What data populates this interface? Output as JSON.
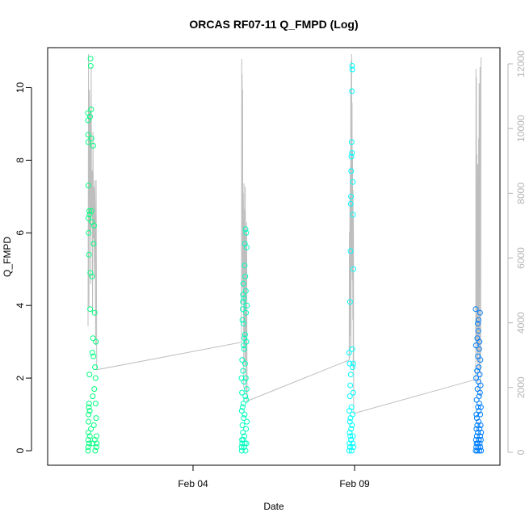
{
  "chart_data": {
    "type": "scatter",
    "title": "ORCAS RF07-11 Q_FMPD (Log)",
    "xlabel": "Date",
    "ylabel": "Q_FMPD",
    "x_ticks": [
      {
        "date": "2016-02-04",
        "label": "Feb 04"
      },
      {
        "date": "2016-02-09",
        "label": "Feb 09"
      }
    ],
    "xlim": [
      "2016-01-30T12:00",
      "2016-02-13T12:00"
    ],
    "ylim": [
      -0.4,
      11.1
    ],
    "y_ticks": [
      0,
      2,
      4,
      6,
      8,
      10
    ],
    "y2lim": [
      -400,
      12500
    ],
    "y2_ticks": [
      0,
      2000,
      4000,
      6000,
      8000,
      10000,
      12000
    ],
    "y2_color": "#b4b4b4",
    "grid": false,
    "line_color": "#bebebe",
    "series": [
      {
        "color": "#00ff7f",
        "x": [
          "2016-01-31T18:00",
          "2016-01-31T18:00",
          "2016-01-31T18:00",
          "2016-01-31T18:05",
          "2016-01-31T18:05",
          "2016-01-31T18:10",
          "2016-01-31T18:10",
          "2016-01-31T18:15",
          "2016-01-31T18:15",
          "2016-01-31T18:20",
          "2016-01-31T18:20",
          "2016-01-31T18:25",
          "2016-01-31T18:30",
          "2016-01-31T18:35",
          "2016-01-31T18:40",
          "2016-01-31T18:45",
          "2016-01-31T18:50",
          "2016-01-31T18:55",
          "2016-01-31T19:00",
          "2016-01-31T19:10",
          "2016-01-31T19:15",
          "2016-01-31T19:20",
          "2016-01-31T19:30",
          "2016-01-31T19:35",
          "2016-01-31T19:40",
          "2016-01-31T19:50",
          "2016-01-31T20:00",
          "2016-01-31T20:10",
          "2016-01-31T20:20",
          "2016-01-31T20:30",
          "2016-01-31T20:40",
          "2016-01-31T20:50",
          "2016-01-31T21:00",
          "2016-01-31T21:10",
          "2016-01-31T21:20",
          "2016-01-31T21:30",
          "2016-01-31T21:40",
          "2016-01-31T21:50",
          "2016-01-31T22:00",
          "2016-01-31T22:10",
          "2016-01-31T22:20",
          "2016-01-31T22:30",
          "2016-01-31T22:40",
          "2016-01-31T22:50",
          "2016-01-31T23:00",
          "2016-01-31T23:10",
          "2016-01-31T23:20",
          "2016-01-31T23:30",
          "2016-01-31T23:40",
          "2016-01-31T23:50",
          "2016-02-01T00:00",
          "2016-02-01T00:10",
          "2016-02-01T00:20",
          "2016-02-01T00:30"
        ],
        "y": [
          0.0,
          9.3,
          9.1,
          0.1,
          8.7,
          0.3,
          8.5,
          0.5,
          7.3,
          0.8,
          6.4,
          1.0,
          6.0,
          1.2,
          5.4,
          1.3,
          0.2,
          6.6,
          2.1,
          6.5,
          1.1,
          0.4,
          9.2,
          3.9,
          4.9,
          10.8,
          10.6,
          0.6,
          9.4,
          8.6,
          6.6,
          6.3,
          4.8,
          2.7,
          0.2,
          1.5,
          3.1,
          8.4,
          2.6,
          5.7,
          0.7,
          6.2,
          1.7,
          3.8,
          0.3,
          2.3,
          0.0,
          2.0,
          1.3,
          3.0,
          0.9,
          0.1,
          0.4,
          0.2
        ]
      },
      {
        "color": "#00ffbf",
        "x": [
          "2016-02-05T12:00",
          "2016-02-05T12:00",
          "2016-02-05T12:10",
          "2016-02-05T12:10",
          "2016-02-05T12:20",
          "2016-02-05T12:20",
          "2016-02-05T12:30",
          "2016-02-05T12:30",
          "2016-02-05T12:40",
          "2016-02-05T12:40",
          "2016-02-05T12:50",
          "2016-02-05T12:50",
          "2016-02-05T13:00",
          "2016-02-05T13:00",
          "2016-02-05T13:10",
          "2016-02-05T13:10",
          "2016-02-05T13:20",
          "2016-02-05T13:20",
          "2016-02-05T13:30",
          "2016-02-05T13:30",
          "2016-02-05T13:40",
          "2016-02-05T13:40",
          "2016-02-05T13:50",
          "2016-02-05T13:50",
          "2016-02-05T14:00",
          "2016-02-05T14:00",
          "2016-02-05T14:10",
          "2016-02-05T14:10",
          "2016-02-05T14:20",
          "2016-02-05T14:20",
          "2016-02-05T14:30",
          "2016-02-05T14:30",
          "2016-02-05T14:40",
          "2016-02-05T14:40",
          "2016-02-05T14:50",
          "2016-02-05T14:50",
          "2016-02-05T15:00",
          "2016-02-05T15:00",
          "2016-02-05T15:10",
          "2016-02-05T15:10",
          "2016-02-05T15:20",
          "2016-02-05T15:20",
          "2016-02-05T15:30",
          "2016-02-05T15:30",
          "2016-02-05T15:40",
          "2016-02-05T15:40",
          "2016-02-05T15:50",
          "2016-02-05T15:50",
          "2016-02-05T16:00",
          "2016-02-05T16:00"
        ],
        "y": [
          0.1,
          2.0,
          0.0,
          1.1,
          0.3,
          1.6,
          0.2,
          2.5,
          3.6,
          0.7,
          1.2,
          3.9,
          4.1,
          0.5,
          2.2,
          4.3,
          4.6,
          0.3,
          1.3,
          3.5,
          2.9,
          0.9,
          1.9,
          4.2,
          0.1,
          2.8,
          0.4,
          3.1,
          5.1,
          1.0,
          5.7,
          0.2,
          2.4,
          3.2,
          1.5,
          4.8,
          0.0,
          6.1,
          2.0,
          4.4,
          0.6,
          3.8,
          1.4,
          6.0,
          0.2,
          3.0,
          5.6,
          1.7,
          0.8,
          4.0
        ]
      },
      {
        "color": "#00ffff",
        "x": [
          "2016-02-08T20:00",
          "2016-02-08T20:00",
          "2016-02-08T20:10",
          "2016-02-08T20:10",
          "2016-02-08T20:20",
          "2016-02-08T20:20",
          "2016-02-08T20:30",
          "2016-02-08T20:30",
          "2016-02-08T20:40",
          "2016-02-08T20:40",
          "2016-02-08T20:50",
          "2016-02-08T20:50",
          "2016-02-08T21:00",
          "2016-02-08T21:00",
          "2016-02-08T21:10",
          "2016-02-08T21:10",
          "2016-02-08T21:20",
          "2016-02-08T21:20",
          "2016-02-08T21:30",
          "2016-02-08T21:30",
          "2016-02-08T21:40",
          "2016-02-08T21:40",
          "2016-02-08T21:50",
          "2016-02-08T21:50",
          "2016-02-08T22:00",
          "2016-02-08T22:00",
          "2016-02-08T22:10",
          "2016-02-08T22:10",
          "2016-02-08T22:20",
          "2016-02-08T22:20",
          "2016-02-08T22:30",
          "2016-02-08T22:30",
          "2016-02-08T22:40",
          "2016-02-08T22:40",
          "2016-02-08T22:50",
          "2016-02-08T22:50",
          "2016-02-08T23:00",
          "2016-02-08T23:00",
          "2016-02-08T23:10",
          "2016-02-08T23:10"
        ],
        "y": [
          0.0,
          2.7,
          0.2,
          1.1,
          0.5,
          2.4,
          0.8,
          1.5,
          0.1,
          4.1,
          1.8,
          0.4,
          5.5,
          0.9,
          2.1,
          6.8,
          0.3,
          7.0,
          7.7,
          0.6,
          8.1,
          1.2,
          8.5,
          0.0,
          8.2,
          9.9,
          10.6,
          0.7,
          10.5,
          2.8,
          2.3,
          1.0,
          0.2,
          7.4,
          6.5,
          0.4,
          1.6,
          2.4,
          0.1,
          5.0
        ]
      },
      {
        "color": "#007fff",
        "x": [
          "2016-02-12T18:00",
          "2016-02-12T18:00",
          "2016-02-12T18:10",
          "2016-02-12T18:10",
          "2016-02-12T18:20",
          "2016-02-12T18:20",
          "2016-02-12T18:30",
          "2016-02-12T18:30",
          "2016-02-12T18:40",
          "2016-02-12T18:40",
          "2016-02-12T18:50",
          "2016-02-12T18:50",
          "2016-02-12T19:00",
          "2016-02-12T19:00",
          "2016-02-12T19:10",
          "2016-02-12T19:10",
          "2016-02-12T19:20",
          "2016-02-12T19:20",
          "2016-02-12T19:30",
          "2016-02-12T19:30",
          "2016-02-12T19:40",
          "2016-02-12T19:40",
          "2016-02-12T19:50",
          "2016-02-12T19:50",
          "2016-02-12T20:00",
          "2016-02-12T20:00",
          "2016-02-12T20:10",
          "2016-02-12T20:10",
          "2016-02-12T20:20",
          "2016-02-12T20:20",
          "2016-02-12T20:30",
          "2016-02-12T20:30",
          "2016-02-12T20:40",
          "2016-02-12T20:40",
          "2016-02-12T20:50",
          "2016-02-12T20:50",
          "2016-02-12T21:00",
          "2016-02-12T21:00",
          "2016-02-12T21:10",
          "2016-02-12T21:10",
          "2016-02-12T21:20",
          "2016-02-12T21:20",
          "2016-02-12T21:30",
          "2016-02-12T21:30",
          "2016-02-12T21:40",
          "2016-02-12T21:40",
          "2016-02-12T21:50",
          "2016-02-12T21:50",
          "2016-02-12T22:00",
          "2016-02-12T22:00"
        ],
        "y": [
          0.0,
          3.9,
          0.3,
          2.9,
          0.1,
          2.0,
          0.6,
          1.0,
          0.2,
          1.4,
          0.9,
          0.4,
          2.2,
          0.0,
          3.1,
          0.7,
          1.7,
          0.2,
          3.5,
          0.5,
          2.6,
          1.2,
          3.3,
          0.1,
          1.9,
          3.6,
          0.8,
          2.3,
          1.1,
          0.3,
          1.5,
          2.8,
          0.0,
          1.3,
          3.0,
          0.6,
          2.1,
          0.2,
          1.6,
          3.8,
          0.4,
          1.0,
          2.5,
          0.1,
          0.7,
          1.8,
          0.3,
          1.2,
          0.5,
          0.0
        ]
      }
    ],
    "y2_series": {
      "x": [
        "2016-01-31T18:00",
        "2016-01-31T18:20",
        "2016-01-31T18:40",
        "2016-01-31T19:00",
        "2016-01-31T19:20",
        "2016-01-31T19:40",
        "2016-01-31T20:00",
        "2016-01-31T20:20",
        "2016-01-31T20:40",
        "2016-01-31T21:00",
        "2016-01-31T21:20",
        "2016-01-31T21:40",
        "2016-01-31T22:00",
        "2016-01-31T22:20",
        "2016-01-31T22:40",
        "2016-01-31T23:00",
        "2016-01-31T23:20",
        "2016-01-31T23:40",
        "2016-02-01T00:00",
        "2016-02-01T00:30",
        "2016-02-05T12:00",
        "2016-02-05T12:10",
        "2016-02-05T12:20",
        "2016-02-05T12:30",
        "2016-02-05T12:40",
        "2016-02-05T12:50",
        "2016-02-05T13:00",
        "2016-02-05T13:10",
        "2016-02-05T13:20",
        "2016-02-05T13:30",
        "2016-02-05T13:40",
        "2016-02-05T13:50",
        "2016-02-05T14:00",
        "2016-02-05T14:10",
        "2016-02-05T14:20",
        "2016-02-05T14:30",
        "2016-02-05T14:40",
        "2016-02-05T14:50",
        "2016-02-05T15:00",
        "2016-02-05T15:10",
        "2016-02-05T15:20",
        "2016-02-05T15:30",
        "2016-02-05T15:40",
        "2016-02-05T15:50",
        "2016-02-05T16:00",
        "2016-02-05T16:10",
        "2016-02-08T20:00",
        "2016-02-08T20:10",
        "2016-02-08T20:20",
        "2016-02-08T20:30",
        "2016-02-08T20:40",
        "2016-02-08T20:50",
        "2016-02-08T21:00",
        "2016-02-08T21:10",
        "2016-02-08T21:20",
        "2016-02-08T21:30",
        "2016-02-08T21:40",
        "2016-02-08T21:50",
        "2016-02-08T22:00",
        "2016-02-08T22:10",
        "2016-02-08T22:20",
        "2016-02-08T22:30",
        "2016-02-08T22:40",
        "2016-02-08T22:50",
        "2016-02-08T23:00",
        "2016-02-08T23:10",
        "2016-02-08T23:20",
        "2016-02-12T18:00",
        "2016-02-12T18:10",
        "2016-02-12T18:20",
        "2016-02-12T18:30",
        "2016-02-12T18:40",
        "2016-02-12T18:50",
        "2016-02-12T19:00",
        "2016-02-12T19:10",
        "2016-02-12T19:20",
        "2016-02-12T19:30",
        "2016-02-12T19:40",
        "2016-02-12T19:50",
        "2016-02-12T20:00",
        "2016-02-12T20:10",
        "2016-02-12T20:20",
        "2016-02-12T20:30",
        "2016-02-12T20:40",
        "2016-02-12T20:50",
        "2016-02-12T21:00",
        "2016-02-12T21:10",
        "2016-02-12T21:20",
        "2016-02-12T21:30",
        "2016-02-12T21:40",
        "2016-02-12T21:50",
        "2016-02-12T22:00"
      ],
      "y": [
        3900,
        12300,
        4500,
        11200,
        6800,
        10500,
        5200,
        11900,
        7400,
        8700,
        4300,
        9900,
        6600,
        8200,
        5400,
        8400,
        7200,
        3300,
        8400,
        2550,
        3400,
        12150,
        4600,
        11700,
        6200,
        11200,
        5100,
        8000,
        4700,
        7000,
        2000,
        8300,
        5700,
        7500,
        3300,
        6600,
        2700,
        8200,
        5100,
        6800,
        1800,
        6300,
        4600,
        7100,
        3400,
        1580,
        2850,
        6800,
        2900,
        7900,
        3600,
        8800,
        4500,
        11200,
        3200,
        12100,
        5700,
        12300,
        6900,
        10800,
        5300,
        9300,
        4100,
        8100,
        2600,
        7300,
        1200,
        2250,
        11850,
        3400,
        11600,
        4200,
        9200,
        2800,
        7700,
        3500,
        8900,
        1900,
        6200,
        4400,
        9700,
        3100,
        11400,
        2600,
        10800,
        5200,
        11900,
        1700,
        9300,
        2900,
        11800,
        12200
      ]
    }
  }
}
